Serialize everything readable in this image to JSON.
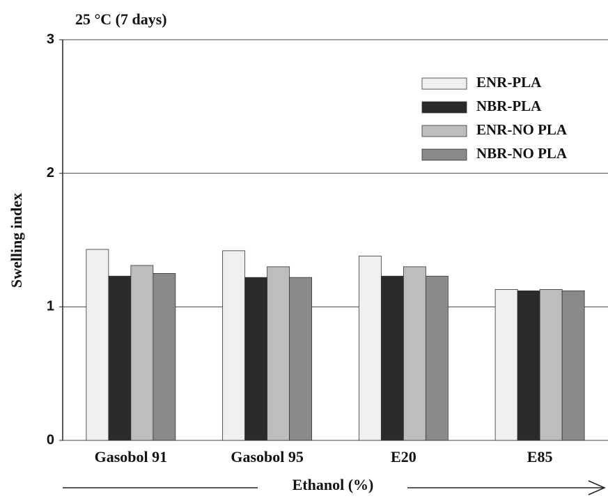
{
  "chart_data": {
    "type": "bar",
    "title": "25 °C (7 days)",
    "x_label": "Ethanol (%)",
    "y_label": "Swelling index",
    "categories": [
      "Gasobol 91",
      "Gasobol 95",
      "E20",
      "E85"
    ],
    "series": [
      {
        "name": "ENR-PLA",
        "color": "#efefef",
        "values": [
          1.43,
          1.42,
          1.38,
          1.13
        ]
      },
      {
        "name": "NBR-PLA",
        "color": "#2b2b2b",
        "values": [
          1.23,
          1.22,
          1.23,
          1.12
        ]
      },
      {
        "name": "ENR-NO PLA",
        "color": "#bdbdbd",
        "values": [
          1.31,
          1.3,
          1.3,
          1.13
        ]
      },
      {
        "name": "NBR-NO PLA",
        "color": "#8a8a8a",
        "values": [
          1.25,
          1.22,
          1.23,
          1.12
        ]
      }
    ],
    "ylim": [
      0,
      3
    ],
    "yticks": [
      0,
      1,
      2,
      3
    ],
    "grid": true,
    "legend": "upper right"
  }
}
